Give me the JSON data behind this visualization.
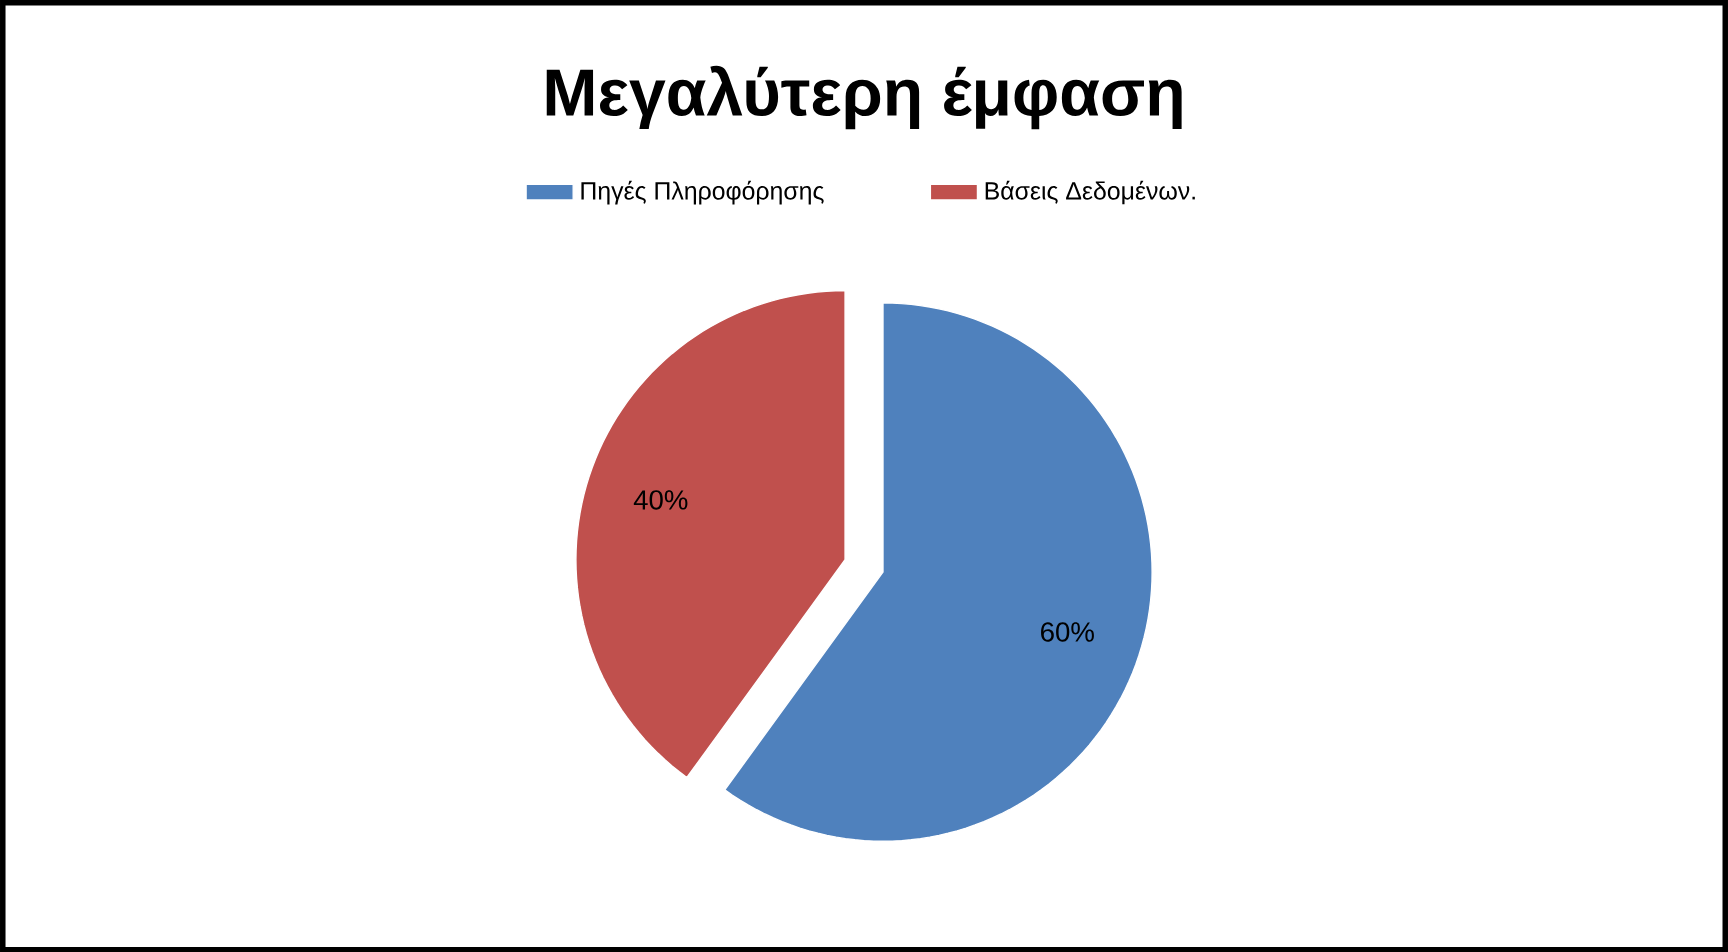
{
  "chart_data": {
    "type": "pie",
    "title": "Μεγαλύτερη έμφαση",
    "categories": [
      "Πηγές Πληροφόρησης",
      "Βάσεις Δεδομένων."
    ],
    "values": [
      60,
      40
    ],
    "colors": [
      "#4f81bd",
      "#c0504d"
    ],
    "value_labels": [
      "60%",
      "40%"
    ],
    "legend": "top"
  }
}
